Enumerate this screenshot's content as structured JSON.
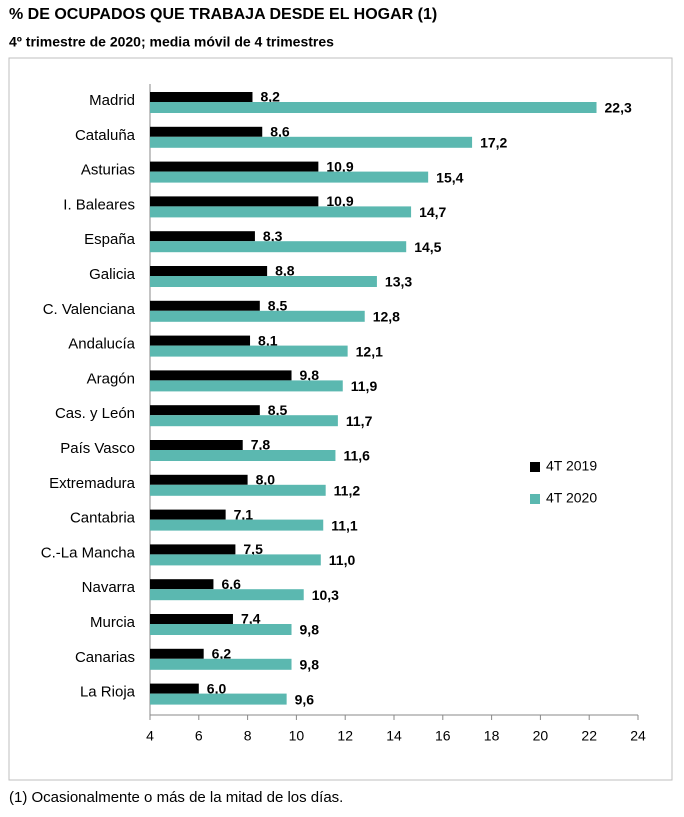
{
  "chart_data": {
    "type": "hbar",
    "title": "% DE OCUPADOS QUE TRABAJA DESDE EL HOGAR (1)",
    "subtitle": "4º trimestre de 2020; media móvil de 4 trimestres",
    "footnote": "(1) Ocasionalmente o más de la mitad de los días.",
    "categories": [
      "Madrid",
      "Cataluña",
      "Asturias",
      "I. Baleares",
      "España",
      "Galicia",
      "C. Valenciana",
      "Andalucía",
      "Aragón",
      "Cas. y León",
      "País Vasco",
      "Extremadura",
      "Cantabria",
      "C.-La Mancha",
      "Navarra",
      "Murcia",
      "Canarias",
      "La Rioja"
    ],
    "series": [
      {
        "name": "4T 2019",
        "color": "#000000",
        "values": [
          8.2,
          8.6,
          10.9,
          10.9,
          8.3,
          8.8,
          8.5,
          8.1,
          9.8,
          8.5,
          7.8,
          8.0,
          7.1,
          7.5,
          6.6,
          7.4,
          6.2,
          6.0
        ],
        "value_labels": [
          "8,2",
          "8,6",
          "10,9",
          "10,9",
          "8,3",
          "8,8",
          "8,5",
          "8,1",
          "9,8",
          "8,5",
          "7,8",
          "8,0",
          "7,1",
          "7,5",
          "6,6",
          "7,4",
          "6,2",
          "6,0"
        ]
      },
      {
        "name": "4T 2020",
        "color": "#5bb8b0",
        "values": [
          22.3,
          17.2,
          15.4,
          14.7,
          14.5,
          13.3,
          12.8,
          12.1,
          11.9,
          11.7,
          11.6,
          11.2,
          11.1,
          11.0,
          10.3,
          9.8,
          9.8,
          9.6
        ],
        "value_labels": [
          "22,3",
          "17,2",
          "15,4",
          "14,7",
          "14,5",
          "13,3",
          "12,8",
          "12,1",
          "11,9",
          "11,7",
          "11,6",
          "11,2",
          "11,1",
          "11,0",
          "10,3",
          "9,8",
          "9,8",
          "9,6"
        ]
      }
    ],
    "xlim": [
      4,
      24
    ],
    "xticks": [
      4,
      6,
      8,
      10,
      12,
      14,
      16,
      18,
      20,
      22,
      24
    ],
    "legend": "right"
  }
}
